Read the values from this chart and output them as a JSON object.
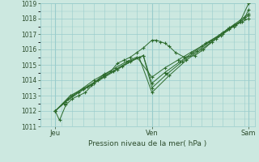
{
  "title": "",
  "xlabel": "Pression niveau de la mer( hPa )",
  "ylabel": "",
  "bg_color": "#cce8e0",
  "grid_color": "#99cccc",
  "line_color": "#2d6b2d",
  "text_color": "#2d4d2d",
  "ylim": [
    1011,
    1019
  ],
  "yticks": [
    1011,
    1012,
    1013,
    1014,
    1015,
    1016,
    1017,
    1018,
    1019
  ],
  "xtick_labels": [
    "Jeu",
    "Ven",
    "Sam"
  ],
  "xtick_positions": [
    0.07,
    0.52,
    0.97
  ],
  "vline_positions": [
    0.07,
    0.52,
    0.97
  ],
  "series": [
    [
      0.07,
      1012.0,
      0.09,
      1011.4,
      0.12,
      1012.4,
      0.15,
      1012.8,
      0.18,
      1013.0,
      0.21,
      1013.2,
      0.25,
      1013.8,
      0.29,
      1014.3,
      0.33,
      1014.6,
      0.36,
      1015.1,
      0.39,
      1015.3,
      0.42,
      1015.5,
      0.45,
      1015.8,
      0.48,
      1016.1,
      0.52,
      1016.6,
      0.54,
      1016.6,
      0.56,
      1016.5,
      0.58,
      1016.4,
      0.6,
      1016.2,
      0.63,
      1015.8,
      0.67,
      1015.5,
      0.72,
      1015.6,
      0.76,
      1016.0,
      0.8,
      1016.5,
      0.84,
      1016.9,
      0.87,
      1017.3,
      0.9,
      1017.6,
      0.93,
      1017.9,
      0.95,
      1018.1,
      0.97,
      1018.3
    ],
    [
      0.07,
      1012.0,
      0.11,
      1012.5,
      0.15,
      1013.0,
      0.2,
      1013.5,
      0.25,
      1014.0,
      0.3,
      1014.4,
      0.35,
      1014.8,
      0.4,
      1015.2,
      0.45,
      1015.5,
      0.52,
      1014.2,
      0.58,
      1014.8,
      0.64,
      1015.3,
      0.7,
      1015.8,
      0.75,
      1016.2,
      0.8,
      1016.6,
      0.85,
      1017.0,
      0.9,
      1017.5,
      0.94,
      1017.8,
      0.97,
      1018.0
    ],
    [
      0.07,
      1012.0,
      0.12,
      1012.6,
      0.18,
      1013.2,
      0.24,
      1013.7,
      0.3,
      1014.2,
      0.36,
      1014.7,
      0.42,
      1015.2,
      0.48,
      1015.6,
      0.52,
      1013.8,
      0.58,
      1014.5,
      0.65,
      1015.2,
      0.71,
      1015.8,
      0.77,
      1016.4,
      0.83,
      1016.9,
      0.88,
      1017.4,
      0.93,
      1017.8,
      0.97,
      1018.2
    ],
    [
      0.07,
      1012.0,
      0.13,
      1012.8,
      0.2,
      1013.4,
      0.27,
      1014.0,
      0.34,
      1014.6,
      0.41,
      1015.2,
      0.48,
      1015.6,
      0.52,
      1013.5,
      0.59,
      1014.4,
      0.66,
      1015.2,
      0.73,
      1015.9,
      0.79,
      1016.5,
      0.85,
      1017.1,
      0.91,
      1017.6,
      0.95,
      1018.0,
      0.97,
      1018.6
    ],
    [
      0.07,
      1012.0,
      0.14,
      1013.0,
      0.22,
      1013.6,
      0.3,
      1014.3,
      0.38,
      1014.9,
      0.46,
      1015.5,
      0.52,
      1013.2,
      0.6,
      1014.3,
      0.68,
      1015.3,
      0.75,
      1016.0,
      0.82,
      1016.7,
      0.88,
      1017.3,
      0.93,
      1017.8,
      0.97,
      1019.0
    ]
  ]
}
